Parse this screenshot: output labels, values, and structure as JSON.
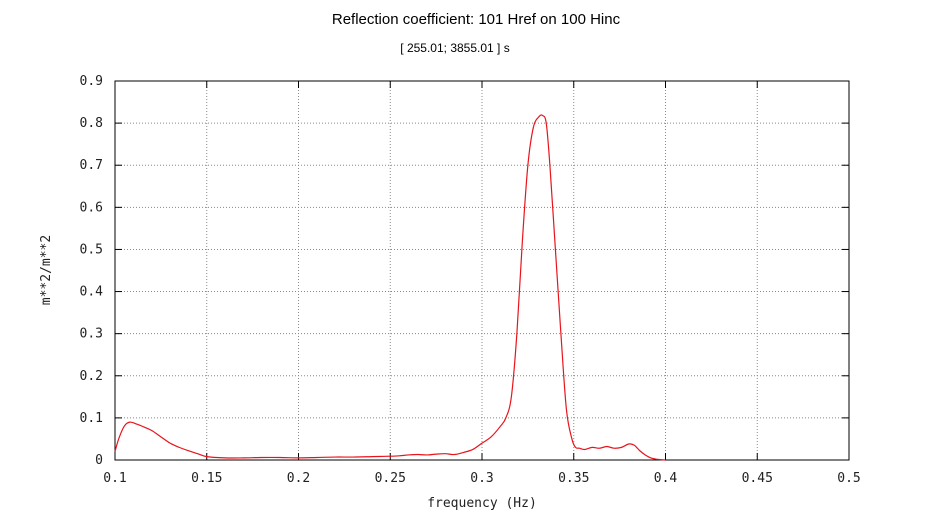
{
  "chart_data": {
    "type": "line",
    "title": "Reflection coefficient: 101 Href on 100 Hinc",
    "subtitle": "[ 255.01; 3855.01 ] s",
    "xlabel": "frequency (Hz)",
    "ylabel": "m**2/m**2",
    "xlim": [
      0.1,
      0.5
    ],
    "ylim": [
      0,
      0.9
    ],
    "xticks": [
      0.1,
      0.15,
      0.2,
      0.25,
      0.3,
      0.35,
      0.4,
      0.45,
      0.5
    ],
    "xtick_labels": [
      "0.1",
      "0.15",
      "0.2",
      "0.25",
      "0.3",
      "0.35",
      "0.4",
      "0.45",
      "0.5"
    ],
    "yticks": [
      0,
      0.1,
      0.2,
      0.3,
      0.4,
      0.5,
      0.6,
      0.7,
      0.8,
      0.9
    ],
    "ytick_labels": [
      "0",
      "0.1",
      "0.2",
      "0.3",
      "0.4",
      "0.5",
      "0.6",
      "0.7",
      "0.8",
      "0.9"
    ],
    "grid": true,
    "colors": {
      "line": "#e8141c",
      "grid": "#888888",
      "axis": "#000000"
    },
    "series": [
      {
        "x": [
          0.1,
          0.102,
          0.105,
          0.108,
          0.112,
          0.116,
          0.12,
          0.125,
          0.13,
          0.135,
          0.14,
          0.145,
          0.15,
          0.16,
          0.17,
          0.18,
          0.19,
          0.2,
          0.21,
          0.22,
          0.23,
          0.24,
          0.25,
          0.255,
          0.26,
          0.265,
          0.27,
          0.275,
          0.28,
          0.285,
          0.29,
          0.295,
          0.3,
          0.305,
          0.31,
          0.313,
          0.316,
          0.319,
          0.322,
          0.325,
          0.328,
          0.331,
          0.333,
          0.335,
          0.337,
          0.34,
          0.343,
          0.346,
          0.349,
          0.351,
          0.353,
          0.356,
          0.36,
          0.364,
          0.368,
          0.372,
          0.376,
          0.38,
          0.383,
          0.386,
          0.389,
          0.392,
          0.395,
          0.4
        ],
        "y": [
          0.02,
          0.05,
          0.08,
          0.09,
          0.085,
          0.078,
          0.07,
          0.055,
          0.04,
          0.03,
          0.022,
          0.015,
          0.008,
          0.005,
          0.005,
          0.006,
          0.006,
          0.005,
          0.006,
          0.007,
          0.007,
          0.008,
          0.009,
          0.01,
          0.012,
          0.013,
          0.012,
          0.014,
          0.015,
          0.013,
          0.018,
          0.025,
          0.04,
          0.055,
          0.08,
          0.1,
          0.15,
          0.3,
          0.52,
          0.7,
          0.79,
          0.815,
          0.818,
          0.8,
          0.7,
          0.5,
          0.3,
          0.12,
          0.05,
          0.03,
          0.028,
          0.025,
          0.03,
          0.028,
          0.032,
          0.028,
          0.03,
          0.038,
          0.035,
          0.022,
          0.012,
          0.005,
          0.002,
          0.0
        ]
      }
    ]
  }
}
